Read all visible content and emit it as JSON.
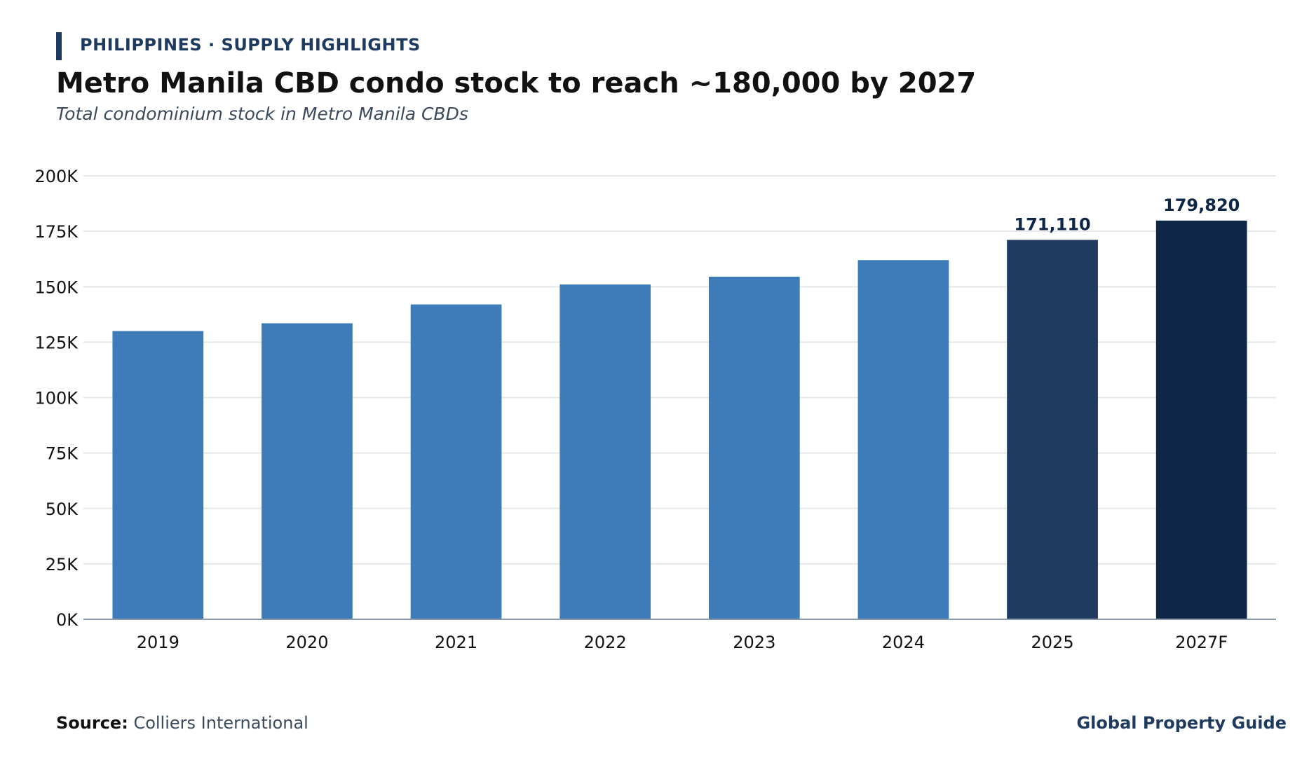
{
  "header": {
    "kicker": "PHILIPPINES · SUPPLY HIGHLIGHTS",
    "title": "Metro Manila CBD condo stock to reach ~180,000 by 2027",
    "subtitle": "Total condominium stock in Metro Manila CBDs"
  },
  "footer": {
    "source_label": "Source:",
    "source_value": "Colliers International",
    "brand": "Global Property Guide"
  },
  "colors": {
    "bar_default": "#3d7cb8",
    "bar_2025": "#1f3a5f",
    "bar_2027F": "#0e2746",
    "grid": "#e6e8eb",
    "axis": "#8a99ad"
  },
  "chart_data": {
    "type": "bar",
    "categories": [
      "2019",
      "2020",
      "2021",
      "2022",
      "2023",
      "2024",
      "2025",
      "2027F"
    ],
    "values": [
      130000,
      133500,
      142000,
      151000,
      154500,
      162000,
      171110,
      179820
    ],
    "data_labels": [
      "",
      "",
      "",
      "",
      "",
      "",
      "171,110",
      "179,820"
    ],
    "ylim": [
      0,
      200000
    ],
    "yticks": [
      0,
      25000,
      50000,
      75000,
      100000,
      125000,
      150000,
      175000,
      200000
    ],
    "ytick_labels": [
      "0K",
      "25K",
      "50K",
      "75K",
      "100K",
      "125K",
      "150K",
      "175K",
      "200K"
    ],
    "grid": true,
    "legend": "none",
    "xlabel": "",
    "ylabel": ""
  }
}
